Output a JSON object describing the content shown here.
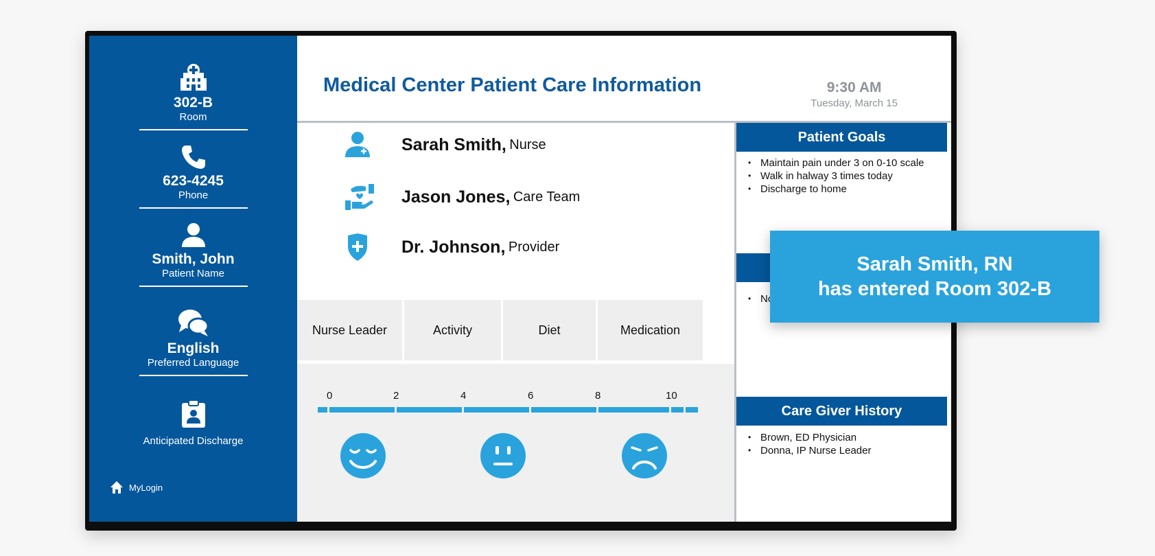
{
  "header": {
    "title": "Medical Center Patient Care Information",
    "time": "9:30 AM",
    "date": "Tuesday, March 15"
  },
  "sidebar": {
    "items": [
      {
        "icon": "hospital-icon",
        "value": "302-B",
        "label": "Room"
      },
      {
        "icon": "phone-icon",
        "value": "623-4245",
        "label": "Phone"
      },
      {
        "icon": "person-icon",
        "value": "Smith, John",
        "label": "Patient Name"
      },
      {
        "icon": "chat-bubbles-icon",
        "value": "English",
        "label": "Preferred Language"
      },
      {
        "icon": "clipboard-icon",
        "value": "",
        "label": "Anticipated Discharge"
      }
    ],
    "login": {
      "icon": "home-icon",
      "label": "MyLogin"
    }
  },
  "care_team": [
    {
      "icon": "nurse-icon",
      "name": "Sarah Smith,",
      "role": "Nurse"
    },
    {
      "icon": "care-hand-icon",
      "name": "Jason Jones,",
      "role": "Care Team"
    },
    {
      "icon": "shield-cross-icon",
      "name": "Dr. Johnson,",
      "role": "Provider"
    }
  ],
  "categories": [
    "Nurse Leader",
    "Activity",
    "Diet",
    "Medication"
  ],
  "pain_scale": {
    "ticks": [
      "0",
      "2",
      "4",
      "6",
      "8",
      "10"
    ],
    "faces": [
      "happy-face-icon",
      "neutral-face-icon",
      "sad-face-icon"
    ],
    "color": "#2aa3dd"
  },
  "patient_goals": {
    "title": "Patient Goals",
    "items": [
      "Maintain pain under 3 on 0-10 scale",
      "Walk in halway 3 times today",
      "Discharge to home"
    ]
  },
  "middle_panel": {
    "items": [
      "No"
    ]
  },
  "care_giver_history": {
    "title": "Care Giver History",
    "items": [
      "Brown, ED Physician",
      "Donna, IP Nurse Leader"
    ]
  },
  "notification": {
    "line1": "Sarah Smith, RN",
    "line2": "has entered Room 302-B"
  },
  "colors": {
    "sidebar": "#05579b",
    "accent": "#2aa3dd",
    "title": "#0f5a9f"
  }
}
